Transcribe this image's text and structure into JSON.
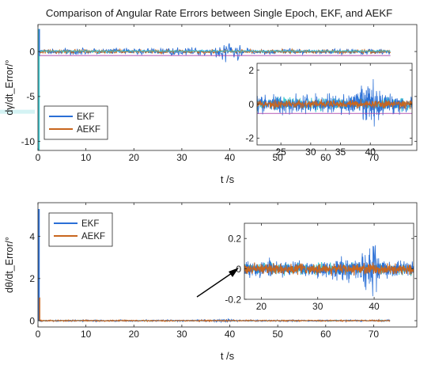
{
  "title": "Comparison of Angular Rate Errors between Single Epoch, EKF, and AEKF",
  "colors": {
    "ekf": "#2a6fd6",
    "aekf": "#c8661e",
    "single_epoch": "#3cc7cf",
    "single_epoch_lower": "#b9ecee",
    "aekf_top_highlight": "#a83fa8",
    "axis": "#262626"
  },
  "chart_data": [
    {
      "type": "line",
      "panel": "top-main",
      "xlabel": "t /s",
      "ylabel": "dγ/dt_Error/°",
      "xlim": [
        0,
        79
      ],
      "ylim": [
        -11,
        3
      ],
      "xticks": [
        0,
        10,
        20,
        30,
        40,
        50,
        60,
        70
      ],
      "yticks": [
        0,
        -5,
        -10
      ],
      "legend": {
        "position": "lower-left",
        "entries": [
          "EKF",
          "AEKF"
        ]
      },
      "series": [
        {
          "name": "EKF",
          "x": [
            0,
            10,
            20,
            30,
            36.5,
            38,
            39,
            40,
            41,
            42,
            43.5,
            50,
            60,
            70,
            73.5
          ],
          "y_envelope": [
            0.5,
            0.5,
            0.5,
            0.6,
            0.6,
            1.5,
            2.3,
            1.5,
            -1.3,
            -1.5,
            0.6,
            0.4,
            0.4,
            0.5,
            0.4
          ]
        },
        {
          "name": "AEKF",
          "x": [
            0,
            10,
            20,
            30,
            40,
            50,
            60,
            70,
            73.5
          ],
          "y_envelope": [
            0.3,
            0.3,
            0.3,
            0.3,
            0.3,
            0.3,
            0.3,
            0.3,
            0.3
          ]
        }
      ],
      "startup_spike": {
        "t": 0.2,
        "y_min": -11,
        "y_max": 2.5
      }
    },
    {
      "type": "line",
      "panel": "top-inset",
      "xlim": [
        21,
        47
      ],
      "ylim": [
        -2.4,
        2.4
      ],
      "xticks": [
        25,
        30,
        35,
        40
      ],
      "yticks": [
        2,
        0,
        -2
      ],
      "series": [
        {
          "name": "EKF",
          "x": [
            21,
            25,
            30,
            35,
            37,
            38.5,
            39.5,
            40.5,
            41.5,
            42.5,
            47
          ],
          "y_envelope": [
            0.8,
            0.8,
            0.8,
            0.9,
            0.9,
            1.6,
            2.0,
            1.7,
            1.3,
            0.9,
            0.8
          ]
        },
        {
          "name": "AEKF",
          "x": [
            21,
            47
          ],
          "y_envelope": [
            0.35,
            0.35
          ]
        }
      ]
    },
    {
      "type": "line",
      "panel": "bottom-main",
      "xlabel": "t /s",
      "ylabel": "dθ/dt_Error/°",
      "xlim": [
        0,
        79
      ],
      "ylim": [
        -0.3,
        5.6
      ],
      "xticks": [
        0,
        10,
        20,
        30,
        40,
        50,
        60,
        70
      ],
      "yticks": [
        0,
        2,
        4
      ],
      "legend": {
        "position": "upper-left",
        "entries": [
          "EKF",
          "AEKF"
        ]
      },
      "series": [
        {
          "name": "EKF",
          "x": [
            0,
            10,
            20,
            30,
            38,
            39,
            40,
            42,
            50,
            60,
            70,
            73.5
          ],
          "y_envelope": [
            0.1,
            0.1,
            0.1,
            0.1,
            0.15,
            0.25,
            0.2,
            0.1,
            0.1,
            0.1,
            0.1,
            0.1
          ]
        },
        {
          "name": "AEKF",
          "x": [
            0,
            73.5
          ],
          "y_envelope": [
            0.07,
            0.07
          ]
        }
      ],
      "startup_spike": {
        "t": 0.2,
        "y_min": 0,
        "y_max": 5.3
      }
    },
    {
      "type": "line",
      "panel": "bottom-inset",
      "xlim": [
        17,
        47
      ],
      "ylim": [
        -0.2,
        0.3
      ],
      "xticks": [
        20,
        30,
        40
      ],
      "yticks": [
        0.2,
        0,
        -0.2
      ],
      "series": [
        {
          "name": "EKF",
          "x": [
            17,
            25,
            30,
            35,
            37,
            38,
            39,
            39.5,
            40,
            41,
            42,
            47
          ],
          "y_envelope": [
            0.08,
            0.08,
            0.08,
            0.13,
            0.08,
            0.15,
            0.22,
            0.28,
            0.27,
            0.12,
            0.08,
            0.08
          ]
        },
        {
          "name": "AEKF",
          "x": [
            17,
            47
          ],
          "y_envelope": [
            0.05,
            0.05
          ]
        }
      ]
    }
  ]
}
